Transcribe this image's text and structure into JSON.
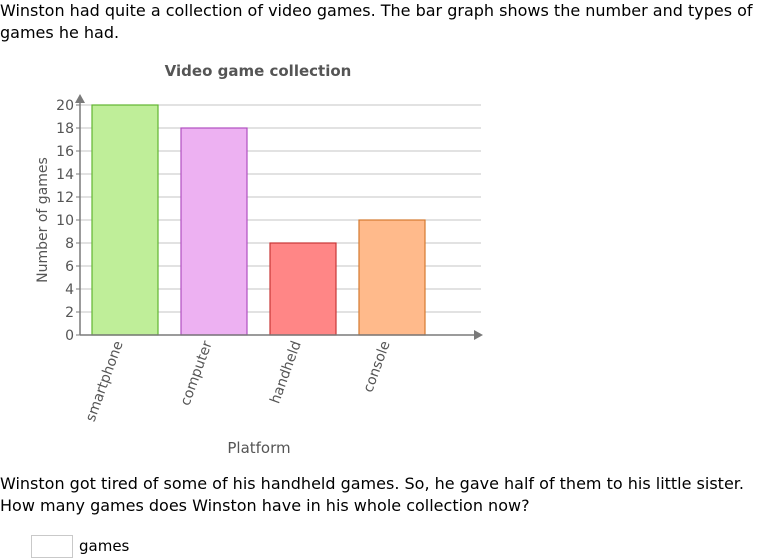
{
  "problem": {
    "intro": "Winston had quite a collection of video games. The bar graph shows the number and types of games he had.",
    "question": "Winston got tired of some of his handheld games. So, he gave half of them to his little sister. How many games does Winston have in his whole collection now?",
    "answer_value": "",
    "answer_unit": "games"
  },
  "chart_data": {
    "type": "bar",
    "title": "Video game collection",
    "xlabel": "Platform",
    "ylabel": "Number of games",
    "categories": [
      "smartphone",
      "computer",
      "handheld",
      "console"
    ],
    "values": [
      20,
      18,
      8,
      10
    ],
    "colors": [
      "#bfee99",
      "#edb1f2",
      "#ff8686",
      "#ffba8b"
    ],
    "stroke_colors": [
      "#62b530",
      "#b04fc0",
      "#c83737",
      "#d47a30"
    ],
    "ylim": [
      0,
      20
    ],
    "yticks": [
      0,
      2,
      4,
      6,
      8,
      10,
      12,
      14,
      16,
      18,
      20
    ],
    "grid": true
  }
}
